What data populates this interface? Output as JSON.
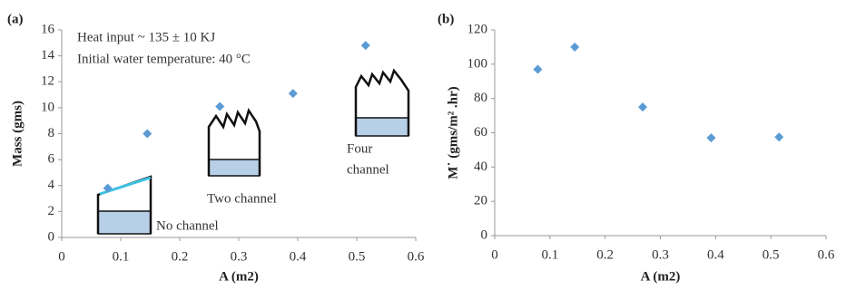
{
  "chart_data": [
    {
      "type": "scatter",
      "panel_label": "(a)",
      "y_label": "Mass (gms)",
      "x_label": "A (m2)",
      "x": [
        0.078,
        0.145,
        0.268,
        0.392,
        0.515
      ],
      "y": [
        3.8,
        8.0,
        10.1,
        11.1,
        14.8
      ],
      "color": "#5b9bd5",
      "xlim": [
        0,
        0.6
      ],
      "xticks": [
        0,
        0.1,
        0.2,
        0.3,
        0.4,
        0.5,
        0.6
      ],
      "ylim": [
        0,
        16
      ],
      "yticks": [
        0,
        2,
        4,
        6,
        8,
        10,
        12,
        14,
        16
      ],
      "annotations": [
        "Heat input ~ 135 ± 10 KJ",
        "Initial water temperature: 40 °C",
        "No channel",
        "Two channel",
        "Four",
        "channel"
      ]
    },
    {
      "type": "scatter",
      "panel_label": "(b)",
      "y_label": "M˙ (gms/m² .hr)",
      "x_label": "A (m2)",
      "x": [
        0.078,
        0.145,
        0.268,
        0.392,
        0.515
      ],
      "y": [
        97,
        110,
        75,
        57,
        57.5
      ],
      "color": "#5b9bd5",
      "xlim": [
        0,
        0.6
      ],
      "xticks": [
        0,
        0.1,
        0.2,
        0.3,
        0.4,
        0.5,
        0.6
      ],
      "ylim": [
        0,
        120
      ],
      "yticks": [
        0,
        20,
        40,
        60,
        80,
        100,
        120
      ],
      "annotations": []
    }
  ]
}
